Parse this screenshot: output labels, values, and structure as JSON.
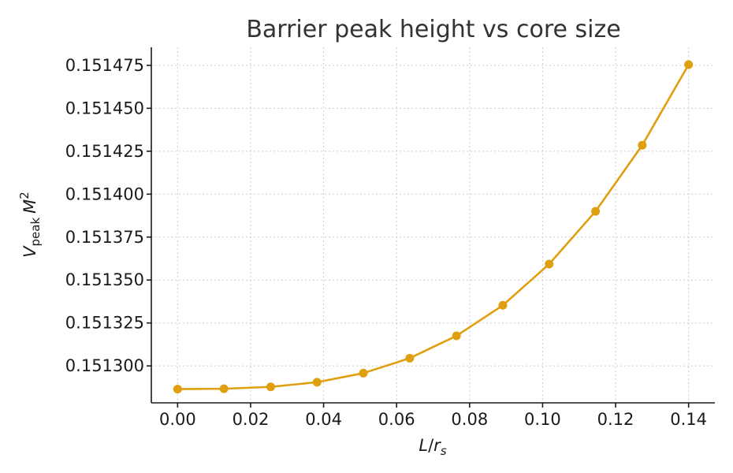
{
  "chart_data": {
    "type": "line",
    "title": "Barrier peak height vs core size",
    "xlabel": {
      "main": "L",
      "sep": "/",
      "r": "r",
      "sub": "s"
    },
    "ylabel": {
      "v": "V",
      "sub": "peak",
      "m": "M",
      "sup": "2"
    },
    "xlim": [
      -0.0072,
      0.1472
    ],
    "ylim": [
      0.1512785,
      0.1514855
    ],
    "x_ticks": [
      0.0,
      0.02,
      0.04,
      0.06,
      0.08,
      0.1,
      0.12,
      0.14
    ],
    "x_tick_labels": [
      "0.00",
      "0.02",
      "0.04",
      "0.06",
      "0.08",
      "0.10",
      "0.12",
      "0.14"
    ],
    "y_ticks": [
      0.1513,
      0.151325,
      0.15135,
      0.151375,
      0.1514,
      0.151425,
      0.15145,
      0.151475
    ],
    "y_tick_labels": [
      "0.151300",
      "0.151325",
      "0.151350",
      "0.151375",
      "0.151400",
      "0.151425",
      "0.151450",
      "0.151475"
    ],
    "grid": true,
    "series": [
      {
        "color": "#e09f0e",
        "x": [
          0.0,
          0.0127,
          0.0255,
          0.0382,
          0.0509,
          0.0636,
          0.0764,
          0.0891,
          0.1018,
          0.1145,
          0.1273,
          0.14
        ],
        "y": [
          0.1512865,
          0.1512867,
          0.1512878,
          0.1512905,
          0.1512958,
          0.1513045,
          0.1513175,
          0.1513353,
          0.1513593,
          0.15139,
          0.1514285,
          0.1514754
        ]
      }
    ]
  }
}
